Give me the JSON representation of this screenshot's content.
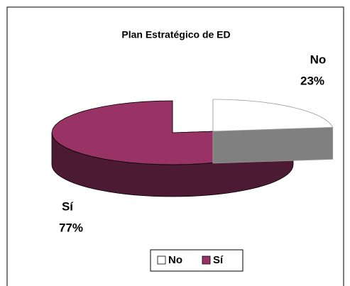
{
  "chart_data": {
    "type": "pie3d",
    "title": "Plan Estratégico de ED",
    "categories": [
      "No",
      "Sí"
    ],
    "values": [
      23,
      77
    ],
    "value_labels": [
      "23%",
      "77%"
    ],
    "colors": [
      "#ffffff",
      "#993366"
    ],
    "legend": "bottom"
  }
}
